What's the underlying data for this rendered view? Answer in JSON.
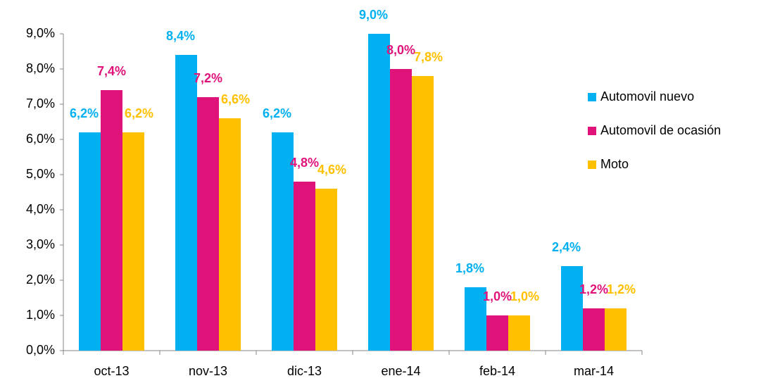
{
  "chart_data": {
    "type": "bar",
    "categories": [
      "oct-13",
      "nov-13",
      "dic-13",
      "ene-14",
      "feb-14",
      "mar-14"
    ],
    "series": [
      {
        "name": "Automovil nuevo",
        "color": "#00b0f0",
        "values": [
          6.2,
          8.4,
          6.2,
          9.0,
          1.8,
          2.4
        ],
        "value_labels": [
          "6,2%",
          "8,4%",
          "6,2%",
          "9,0%",
          "1,8%",
          "2,4%"
        ]
      },
      {
        "name": "Automovil de ocasión",
        "color": "#e0137a",
        "values": [
          7.4,
          7.2,
          4.8,
          8.0,
          1.0,
          1.2
        ],
        "value_labels": [
          "7,4%",
          "7,2%",
          "4,8%",
          "8,0%",
          "1,0%",
          "1,2%"
        ]
      },
      {
        "name": "Moto",
        "color": "#ffc000",
        "values": [
          6.2,
          6.6,
          4.6,
          7.8,
          1.0,
          1.2
        ],
        "value_labels": [
          "6,2%",
          "6,6%",
          "4,6%",
          "7,8%",
          "1,0%",
          "1,2%"
        ]
      }
    ],
    "ylim": [
      0,
      9
    ],
    "yticks": [
      {
        "value": 0,
        "label": "0,0%"
      },
      {
        "value": 1,
        "label": "1,0%"
      },
      {
        "value": 2,
        "label": "2,0%"
      },
      {
        "value": 3,
        "label": "3,0%"
      },
      {
        "value": 4,
        "label": "4,0%"
      },
      {
        "value": 5,
        "label": "5,0%"
      },
      {
        "value": 6,
        "label": "6,0%"
      },
      {
        "value": 7,
        "label": "7,0%"
      },
      {
        "value": 8,
        "label": "8,0%"
      },
      {
        "value": 9,
        "label": "9,0%"
      }
    ],
    "grid": false,
    "legend": "right"
  }
}
